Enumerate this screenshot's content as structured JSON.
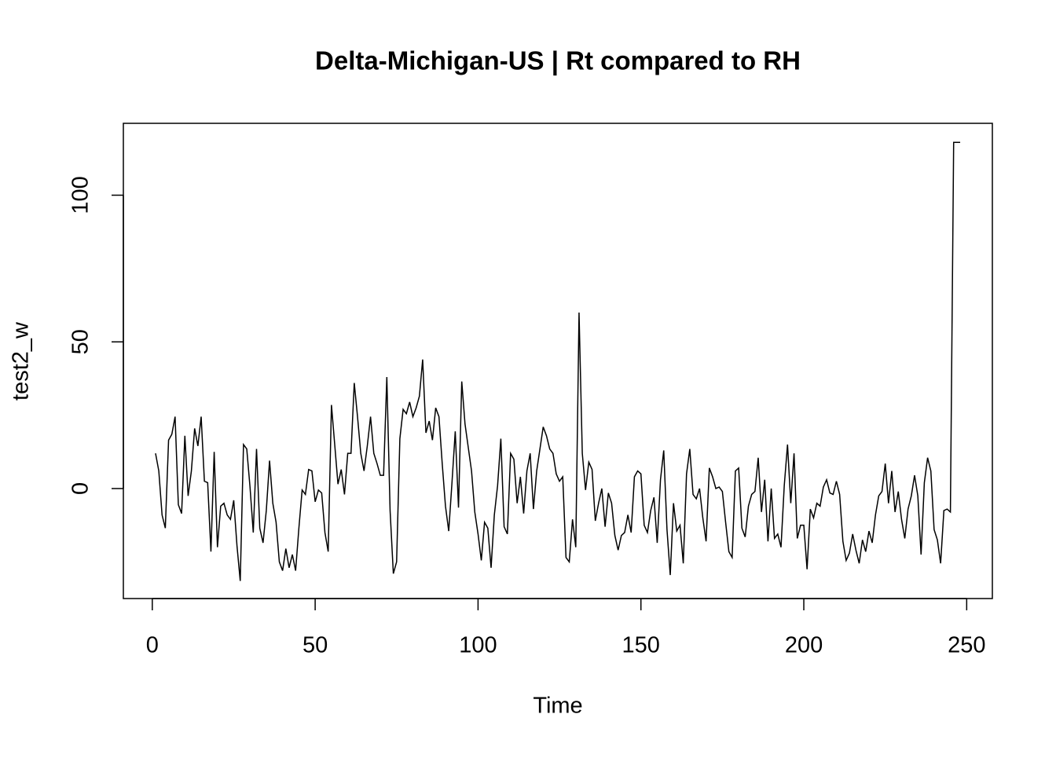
{
  "chart_data": {
    "type": "line",
    "title": "Delta-Michigan-US | Rt compared to RH",
    "x_label": "Time",
    "y_label": "test2_w",
    "color": "#000000",
    "x": [
      1,
      2,
      3,
      4,
      5,
      6,
      7,
      8,
      9,
      10,
      11,
      12,
      13,
      14,
      15,
      16,
      17,
      18,
      19,
      20,
      21,
      22,
      23,
      24,
      25,
      26,
      27,
      28,
      29,
      30,
      31,
      32,
      33,
      34,
      35,
      36,
      37,
      38,
      39,
      40,
      41,
      42,
      43,
      44,
      45,
      46,
      47,
      48,
      49,
      50,
      51,
      52,
      53,
      54,
      55,
      56,
      57,
      58,
      59,
      60,
      61,
      62,
      63,
      64,
      65,
      66,
      67,
      68,
      69,
      70,
      71,
      72,
      73,
      74,
      75,
      76,
      77,
      78,
      79,
      80,
      81,
      82,
      83,
      84,
      85,
      86,
      87,
      88,
      89,
      90,
      91,
      92,
      93,
      94,
      95,
      96,
      97,
      98,
      99,
      100,
      101,
      102,
      103,
      104,
      105,
      106,
      107,
      108,
      109,
      110,
      111,
      112,
      113,
      114,
      115,
      116,
      117,
      118,
      119,
      120,
      121,
      122,
      123,
      124,
      125,
      126,
      127,
      128,
      129,
      130,
      131,
      132,
      133,
      134,
      135,
      136,
      137,
      138,
      139,
      140,
      141,
      142,
      143,
      144,
      145,
      146,
      147,
      148,
      149,
      150,
      151,
      152,
      153,
      154,
      155,
      156,
      157,
      158,
      159,
      160,
      161,
      162,
      163,
      164,
      165,
      166,
      167,
      168,
      169,
      170,
      171,
      172,
      173,
      174,
      175,
      176,
      177,
      178,
      179,
      180,
      181,
      182,
      183,
      184,
      185,
      186,
      187,
      188,
      189,
      190,
      191,
      192,
      193,
      194,
      195,
      196,
      197,
      198,
      199,
      200,
      201,
      202,
      203,
      204,
      205,
      206,
      207,
      208,
      209,
      210,
      211,
      212,
      213,
      214,
      215,
      216,
      217,
      218,
      219,
      220,
      221,
      222,
      223,
      224,
      225,
      226,
      227,
      228,
      229,
      230,
      231,
      232,
      233,
      234,
      235,
      236,
      237,
      238,
      239,
      240,
      241,
      242,
      243,
      244,
      245,
      246,
      247,
      248
    ],
    "values": [
      12,
      6,
      -9,
      -13.5,
      16.5,
      18.5,
      24.5,
      -5.5,
      -8.5,
      18,
      -2.5,
      6,
      20.5,
      14.5,
      24.5,
      2.5,
      2,
      -21.5,
      12.5,
      -20,
      -6,
      -5,
      -9,
      -10.5,
      -4,
      -19.5,
      -31.5,
      15,
      13.5,
      0.5,
      -15,
      13.5,
      -13.5,
      -18.5,
      -7.5,
      9.5,
      -5,
      -11.5,
      -25,
      -28,
      -20.5,
      -27,
      -22.5,
      -28,
      -13.5,
      -0.5,
      -2,
      6.5,
      6,
      -4.5,
      -0.5,
      -1.5,
      -15,
      -21.5,
      28.5,
      15,
      1.5,
      6.5,
      -2,
      12,
      12,
      36,
      24.5,
      12,
      6,
      14.5,
      24.5,
      12,
      8.5,
      4.5,
      4.5,
      38,
      -7.5,
      -29,
      -25,
      17,
      27,
      25.5,
      29.5,
      24.5,
      27.5,
      31.5,
      44,
      19,
      23,
      16.5,
      27.5,
      24.5,
      8.5,
      -6,
      -14.5,
      2,
      19.5,
      -6.5,
      36.5,
      22,
      14,
      6,
      -8,
      -15.5,
      -24.5,
      -11.5,
      -13.5,
      -27,
      -9,
      1,
      17,
      -13,
      -15.5,
      12,
      10,
      -5,
      4,
      -8.5,
      6,
      12,
      -7,
      6,
      13.5,
      21,
      18,
      13.5,
      12,
      5,
      2.5,
      4,
      -23.5,
      -25,
      -10.5,
      -20,
      60,
      12,
      -0.5,
      9,
      6.5,
      -11,
      -5,
      0,
      -13,
      -1.5,
      -5,
      -16,
      -21,
      -16,
      -15,
      -9,
      -15,
      4,
      6,
      5,
      -12.5,
      -15,
      -7.5,
      -3,
      -18.5,
      3,
      13,
      -14,
      -29.5,
      -5,
      -14.5,
      -12.5,
      -25.5,
      5,
      13.5,
      -2,
      -3.5,
      0,
      -10,
      -18,
      7,
      4,
      0,
      0.5,
      -1,
      -11.5,
      -21.5,
      -23.5,
      6,
      7,
      -13.5,
      -16.5,
      -6,
      -2,
      -1,
      10.5,
      -8,
      3,
      -18,
      0,
      -17,
      -15.5,
      -20,
      1,
      15,
      -5,
      12,
      -17,
      -12.5,
      -12.5,
      -27.5,
      -7,
      -10,
      -5,
      -6,
      0.5,
      3,
      -1.5,
      -2,
      2.5,
      -2,
      -18,
      -24.5,
      -22,
      -15.5,
      -21,
      -25.5,
      -17.5,
      -21.5,
      -14.5,
      -18.5,
      -9,
      -2.5,
      -1,
      8.5,
      -5,
      6,
      -8,
      -1,
      -10.5,
      -17,
      -7,
      -2.5,
      4.5,
      -2.5,
      -22.5,
      2,
      10.5,
      6,
      -14,
      -17.5,
      -25.5,
      -7.5,
      -7,
      -8,
      118,
      118,
      118
    ],
    "xlim": [
      -8.88,
      257.88
    ],
    "ylim": [
      -37.5,
      124.5
    ],
    "xticks": [
      0,
      50,
      100,
      150,
      200,
      250
    ],
    "yticks": [
      0,
      50,
      100
    ]
  }
}
